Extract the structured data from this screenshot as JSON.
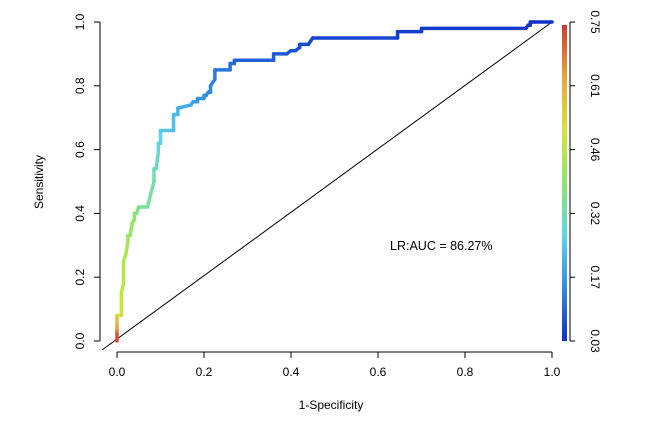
{
  "chart_data": {
    "type": "line",
    "title": "",
    "xlabel": "1-Specificity",
    "ylabel": "Sensitivity",
    "xlim": [
      0,
      1
    ],
    "ylim": [
      0,
      1
    ],
    "x_ticks": [
      "0.0",
      "0.2",
      "0.4",
      "0.6",
      "0.8",
      "1.0"
    ],
    "y_ticks": [
      "0.0",
      "0.2",
      "0.4",
      "0.6",
      "0.8",
      "1.0"
    ],
    "annotation": "LR:AUC = 86.27%",
    "reference_line": {
      "from": [
        0,
        0
      ],
      "to": [
        1,
        1
      ],
      "color": "#000000"
    },
    "colorbar": {
      "ticks": [
        "0.03",
        "0.17",
        "0.32",
        "0.46",
        "0.61",
        "0.75"
      ],
      "range": [
        0.03,
        0.75
      ],
      "colors": [
        "#1030c8",
        "#2f8be0",
        "#5cd6ea",
        "#8ee66a",
        "#d8e23a",
        "#e8a83a",
        "#d2382a"
      ],
      "placement": "right"
    },
    "series": [
      {
        "x": [
          0.0,
          0.0,
          0.0,
          0.0,
          0.0,
          0.005,
          0.01,
          0.01,
          0.015,
          0.015,
          0.02,
          0.025,
          0.025,
          0.03,
          0.035,
          0.04,
          0.04,
          0.045,
          0.05,
          0.055,
          0.07,
          0.085,
          0.085,
          0.09,
          0.095,
          0.095,
          0.1,
          0.1,
          0.105,
          0.13,
          0.13,
          0.14,
          0.14,
          0.17,
          0.175,
          0.185,
          0.185,
          0.2,
          0.2,
          0.205,
          0.21,
          0.215,
          0.215,
          0.225,
          0.225,
          0.26,
          0.26,
          0.27,
          0.27,
          0.36,
          0.36,
          0.39,
          0.4,
          0.41,
          0.42,
          0.42,
          0.44,
          0.445,
          0.45,
          0.64,
          0.645,
          0.645,
          0.7,
          0.7,
          0.94,
          0.945,
          0.95,
          0.95,
          0.96,
          1.0
        ],
        "y": [
          0.0,
          0.03,
          0.04,
          0.06,
          0.08,
          0.08,
          0.08,
          0.15,
          0.18,
          0.25,
          0.27,
          0.31,
          0.33,
          0.33,
          0.37,
          0.38,
          0.4,
          0.4,
          0.42,
          0.42,
          0.42,
          0.5,
          0.54,
          0.54,
          0.59,
          0.62,
          0.62,
          0.66,
          0.66,
          0.66,
          0.71,
          0.71,
          0.73,
          0.74,
          0.75,
          0.75,
          0.76,
          0.76,
          0.77,
          0.77,
          0.78,
          0.78,
          0.8,
          0.82,
          0.85,
          0.85,
          0.87,
          0.87,
          0.88,
          0.88,
          0.9,
          0.9,
          0.91,
          0.91,
          0.92,
          0.93,
          0.93,
          0.94,
          0.95,
          0.95,
          0.95,
          0.97,
          0.97,
          0.98,
          0.98,
          0.99,
          0.99,
          1.0,
          1.0,
          1.0
        ],
        "threshold": [
          0.75,
          0.7,
          0.65,
          0.6,
          0.55,
          0.53,
          0.5,
          0.48,
          0.46,
          0.45,
          0.44,
          0.43,
          0.42,
          0.41,
          0.4,
          0.39,
          0.38,
          0.37,
          0.36,
          0.35,
          0.34,
          0.33,
          0.32,
          0.31,
          0.29,
          0.28,
          0.27,
          0.26,
          0.25,
          0.24,
          0.23,
          0.22,
          0.21,
          0.2,
          0.19,
          0.18,
          0.17,
          0.165,
          0.16,
          0.155,
          0.15,
          0.145,
          0.14,
          0.135,
          0.13,
          0.12,
          0.115,
          0.11,
          0.1,
          0.095,
          0.09,
          0.085,
          0.08,
          0.075,
          0.07,
          0.068,
          0.065,
          0.062,
          0.06,
          0.055,
          0.052,
          0.05,
          0.048,
          0.045,
          0.042,
          0.04,
          0.038,
          0.035,
          0.032,
          0.03
        ]
      }
    ]
  }
}
